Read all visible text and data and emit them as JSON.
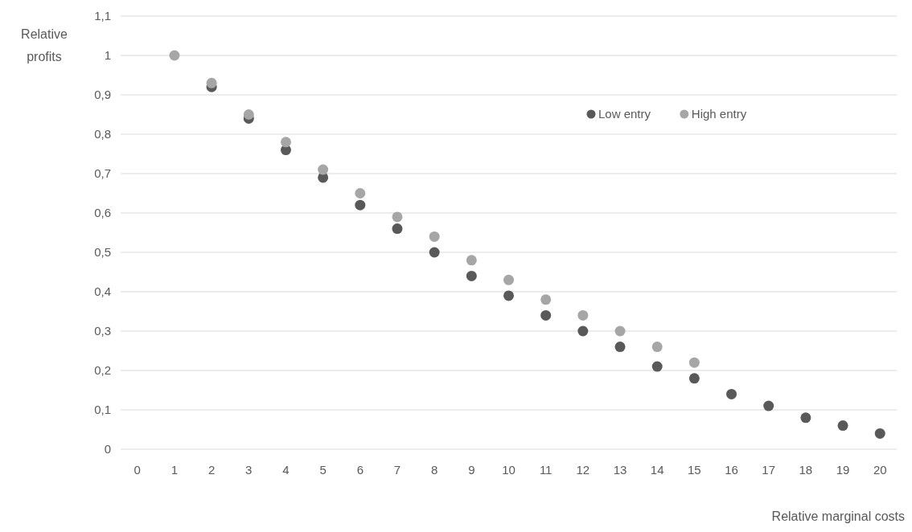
{
  "chart_data": {
    "type": "scatter",
    "xlabel": "Relative marginal costs",
    "ylabel": "Relative profits",
    "x": [
      1,
      2,
      3,
      4,
      5,
      6,
      7,
      8,
      9,
      10,
      11,
      12,
      13,
      14,
      15,
      16,
      17,
      18,
      19,
      20
    ],
    "series": [
      {
        "name": "Low entry",
        "color": "#595959",
        "values": [
          null,
          0.92,
          0.84,
          0.76,
          0.69,
          0.62,
          0.56,
          0.5,
          0.44,
          0.39,
          0.34,
          0.3,
          0.26,
          0.21,
          0.18,
          0.14,
          0.11,
          0.08,
          0.06,
          0.04
        ]
      },
      {
        "name": "High entry",
        "color": "#a6a6a6",
        "values": [
          1,
          0.93,
          0.85,
          0.78,
          0.71,
          0.65,
          0.59,
          0.54,
          0.48,
          0.43,
          0.38,
          0.34,
          0.3,
          0.26,
          0.22,
          null,
          null,
          null,
          null,
          null
        ]
      }
    ],
    "xlim": [
      -0.45,
      20.45
    ],
    "xticks": [
      0,
      1,
      2,
      3,
      4,
      5,
      6,
      7,
      8,
      9,
      10,
      11,
      12,
      13,
      14,
      15,
      16,
      17,
      18,
      19,
      20
    ],
    "ylim": [
      0,
      1.1
    ],
    "yticks": [
      0,
      {
        "value": 0.1,
        "label": "0,1"
      },
      {
        "value": 0.2,
        "label": "0,2"
      },
      {
        "value": 0.3,
        "label": "0,3"
      },
      {
        "value": 0.4,
        "label": "0,4"
      },
      {
        "value": 0.5,
        "label": "0,5"
      },
      {
        "value": 0.6,
        "label": "0,6"
      },
      {
        "value": 0.7,
        "label": "0,7"
      },
      {
        "value": 0.8,
        "label": "0,8"
      },
      {
        "value": 0.9,
        "label": "0,9"
      },
      1,
      {
        "value": 1.1,
        "label": "1,1"
      }
    ],
    "grid": "y",
    "legend": "top right",
    "marker": "circle"
  }
}
